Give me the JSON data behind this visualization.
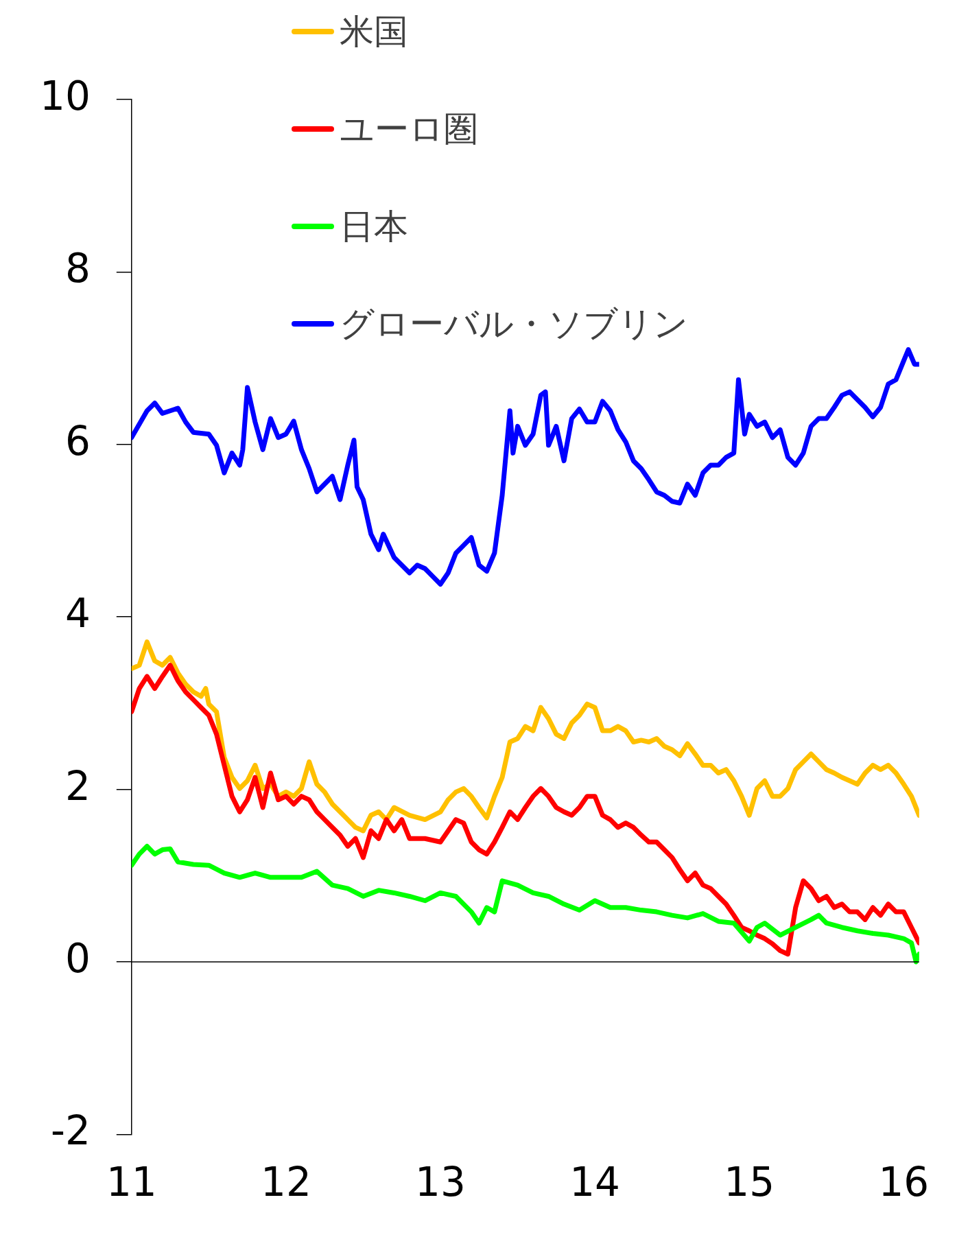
{
  "chart_data": {
    "type": "line",
    "xlim": [
      11,
      16.1
    ],
    "xticks": [
      11,
      12,
      13,
      14,
      15,
      16
    ],
    "ylim": [
      -2,
      10
    ],
    "yticks": [
      -2,
      0,
      2,
      4,
      6,
      8,
      10
    ],
    "grid": false,
    "legend": "top",
    "ref_lines": [
      {
        "axis": "y",
        "value": 0,
        "color": "#000000"
      }
    ],
    "marker": "none",
    "line_style": "solid",
    "series": [
      {
        "name": "米国",
        "color": "#ffc000",
        "x": [
          11,
          11.05,
          11.1,
          11.15,
          11.2,
          11.25,
          11.3,
          11.35,
          11.4,
          11.45,
          11.48,
          11.5,
          11.55,
          11.6,
          11.65,
          11.7,
          11.75,
          11.8,
          11.85,
          11.9,
          11.95,
          12,
          12.05,
          12.1,
          12.15,
          12.2,
          12.25,
          12.3,
          12.35,
          12.4,
          12.45,
          12.5,
          12.55,
          12.6,
          12.65,
          12.7,
          12.8,
          12.9,
          13,
          13.05,
          13.1,
          13.15,
          13.2,
          13.25,
          13.3,
          13.35,
          13.4,
          13.45,
          13.5,
          13.55,
          13.6,
          13.65,
          13.7,
          13.75,
          13.8,
          13.85,
          13.9,
          13.95,
          14,
          14.05,
          14.1,
          14.15,
          14.2,
          14.25,
          14.3,
          14.35,
          14.4,
          14.45,
          14.5,
          14.55,
          14.6,
          14.65,
          14.7,
          14.75,
          14.8,
          14.85,
          14.9,
          14.95,
          15,
          15.05,
          15.1,
          15.15,
          15.2,
          15.25,
          15.3,
          15.35,
          15.4,
          15.45,
          15.5,
          15.55,
          15.6,
          15.65,
          15.7,
          15.75,
          15.8,
          15.85,
          15.9,
          15.95,
          16,
          16.05,
          16.1
        ],
        "values": [
          3.4,
          3.44,
          3.71,
          3.49,
          3.44,
          3.53,
          3.35,
          3.22,
          3.13,
          3.08,
          3.17,
          2.99,
          2.9,
          2.37,
          2.14,
          2.01,
          2.1,
          2.28,
          2.01,
          2.06,
          1.92,
          1.97,
          1.92,
          2.01,
          2.32,
          2.06,
          1.97,
          1.83,
          1.74,
          1.65,
          1.56,
          1.52,
          1.7,
          1.74,
          1.65,
          1.79,
          1.7,
          1.65,
          1.74,
          1.88,
          1.97,
          2.01,
          1.92,
          1.79,
          1.67,
          1.92,
          2.14,
          2.55,
          2.59,
          2.73,
          2.68,
          2.95,
          2.82,
          2.64,
          2.59,
          2.77,
          2.86,
          2.99,
          2.95,
          2.68,
          2.68,
          2.73,
          2.68,
          2.55,
          2.57,
          2.55,
          2.59,
          2.5,
          2.46,
          2.39,
          2.53,
          2.41,
          2.28,
          2.28,
          2.19,
          2.23,
          2.1,
          1.92,
          1.7,
          2.01,
          2.1,
          1.92,
          1.92,
          2.01,
          2.23,
          2.32,
          2.41,
          2.32,
          2.23,
          2.19,
          2.14,
          2.1,
          2.06,
          2.19,
          2.28,
          2.23,
          2.28,
          2.19,
          2.06,
          1.92,
          1.7
        ]
      },
      {
        "name": "ユーロ圏",
        "color": "#ff0000",
        "x": [
          11,
          11.05,
          11.1,
          11.15,
          11.2,
          11.25,
          11.3,
          11.35,
          11.4,
          11.45,
          11.5,
          11.55,
          11.6,
          11.65,
          11.7,
          11.75,
          11.8,
          11.85,
          11.9,
          11.95,
          12,
          12.05,
          12.1,
          12.15,
          12.2,
          12.25,
          12.3,
          12.35,
          12.4,
          12.45,
          12.5,
          12.55,
          12.6,
          12.65,
          12.7,
          12.75,
          12.8,
          12.9,
          13,
          13.05,
          13.1,
          13.15,
          13.2,
          13.25,
          13.3,
          13.35,
          13.4,
          13.45,
          13.5,
          13.55,
          13.6,
          13.65,
          13.7,
          13.75,
          13.8,
          13.85,
          13.9,
          13.95,
          14,
          14.05,
          14.1,
          14.15,
          14.2,
          14.25,
          14.3,
          14.35,
          14.4,
          14.45,
          14.5,
          14.55,
          14.6,
          14.65,
          14.7,
          14.75,
          14.8,
          14.85,
          14.9,
          14.95,
          15,
          15.05,
          15.1,
          15.15,
          15.2,
          15.25,
          15.3,
          15.35,
          15.4,
          15.45,
          15.5,
          15.55,
          15.6,
          15.65,
          15.7,
          15.75,
          15.8,
          15.85,
          15.9,
          15.95,
          16,
          16.05,
          16.1
        ],
        "values": [
          2.9,
          3.17,
          3.31,
          3.17,
          3.31,
          3.44,
          3.26,
          3.13,
          3.04,
          2.95,
          2.86,
          2.64,
          2.28,
          1.92,
          1.74,
          1.88,
          2.14,
          1.79,
          2.19,
          1.88,
          1.92,
          1.83,
          1.92,
          1.88,
          1.74,
          1.65,
          1.56,
          1.47,
          1.34,
          1.43,
          1.21,
          1.52,
          1.43,
          1.65,
          1.52,
          1.65,
          1.43,
          1.43,
          1.39,
          1.52,
          1.65,
          1.61,
          1.39,
          1.3,
          1.25,
          1.39,
          1.56,
          1.74,
          1.65,
          1.79,
          1.92,
          2.01,
          1.92,
          1.79,
          1.74,
          1.7,
          1.79,
          1.92,
          1.92,
          1.7,
          1.65,
          1.56,
          1.61,
          1.56,
          1.47,
          1.39,
          1.39,
          1.3,
          1.21,
          1.07,
          0.94,
          1.03,
          0.89,
          0.85,
          0.76,
          0.67,
          0.54,
          0.4,
          0.36,
          0.31,
          0.27,
          0.21,
          0.13,
          0.09,
          0.63,
          0.94,
          0.85,
          0.71,
          0.76,
          0.63,
          0.67,
          0.58,
          0.58,
          0.49,
          0.63,
          0.54,
          0.67,
          0.58,
          0.58,
          0.4,
          0.22
        ]
      },
      {
        "name": "日本",
        "color": "#00ff00",
        "x": [
          11,
          11.05,
          11.1,
          11.15,
          11.2,
          11.25,
          11.3,
          11.4,
          11.5,
          11.6,
          11.7,
          11.8,
          11.9,
          12,
          12.1,
          12.2,
          12.3,
          12.4,
          12.5,
          12.6,
          12.7,
          12.8,
          12.9,
          13,
          13.1,
          13.2,
          13.25,
          13.3,
          13.35,
          13.4,
          13.5,
          13.6,
          13.7,
          13.8,
          13.9,
          14,
          14.1,
          14.2,
          14.3,
          14.4,
          14.5,
          14.6,
          14.7,
          14.8,
          14.9,
          15,
          15.05,
          15.1,
          15.2,
          15.3,
          15.4,
          15.45,
          15.5,
          15.6,
          15.7,
          15.8,
          15.9,
          16,
          16.05,
          16.08,
          16.1
        ],
        "values": [
          1.12,
          1.25,
          1.34,
          1.25,
          1.3,
          1.31,
          1.16,
          1.13,
          1.12,
          1.03,
          0.98,
          1.03,
          0.98,
          0.98,
          0.98,
          1.05,
          0.89,
          0.85,
          0.76,
          0.83,
          0.8,
          0.76,
          0.71,
          0.8,
          0.76,
          0.58,
          0.45,
          0.63,
          0.58,
          0.94,
          0.89,
          0.8,
          0.76,
          0.67,
          0.6,
          0.71,
          0.63,
          0.63,
          0.6,
          0.58,
          0.54,
          0.51,
          0.56,
          0.47,
          0.45,
          0.24,
          0.4,
          0.45,
          0.31,
          0.4,
          0.49,
          0.54,
          0.45,
          0.4,
          0.36,
          0.33,
          0.31,
          0.27,
          0.22,
          0,
          0.09
        ]
      },
      {
        "name": "グローバル・ソブリン",
        "color": "#0000ff",
        "x": [
          11,
          11.1,
          11.15,
          11.2,
          11.3,
          11.35,
          11.4,
          11.5,
          11.55,
          11.6,
          11.65,
          11.7,
          11.72,
          11.75,
          11.8,
          11.85,
          11.9,
          11.95,
          12,
          12.05,
          12.1,
          12.15,
          12.2,
          12.3,
          12.35,
          12.4,
          12.44,
          12.46,
          12.5,
          12.55,
          12.6,
          12.63,
          12.7,
          12.8,
          12.85,
          12.9,
          12.95,
          13,
          13.05,
          13.1,
          13.15,
          13.2,
          13.25,
          13.3,
          13.35,
          13.4,
          13.45,
          13.47,
          13.5,
          13.55,
          13.6,
          13.65,
          13.68,
          13.7,
          13.75,
          13.8,
          13.85,
          13.9,
          13.95,
          14,
          14.05,
          14.1,
          14.15,
          14.2,
          14.25,
          14.3,
          14.35,
          14.4,
          14.45,
          14.5,
          14.55,
          14.6,
          14.65,
          14.7,
          14.75,
          14.8,
          14.85,
          14.9,
          14.93,
          14.97,
          15,
          15.05,
          15.1,
          15.15,
          15.2,
          15.25,
          15.3,
          15.35,
          15.4,
          15.45,
          15.5,
          15.55,
          15.6,
          15.65,
          15.7,
          15.75,
          15.8,
          15.85,
          15.9,
          15.95,
          16,
          16.03,
          16.07,
          16.1
        ],
        "values": [
          6.08,
          6.39,
          6.48,
          6.36,
          6.42,
          6.26,
          6.14,
          6.12,
          5.99,
          5.67,
          5.9,
          5.76,
          5.94,
          6.66,
          6.26,
          5.94,
          6.3,
          6.08,
          6.12,
          6.27,
          5.94,
          5.72,
          5.45,
          5.63,
          5.36,
          5.76,
          6.05,
          5.51,
          5.36,
          4.96,
          4.78,
          4.96,
          4.69,
          4.51,
          4.6,
          4.56,
          4.47,
          4.38,
          4.51,
          4.74,
          4.83,
          4.92,
          4.6,
          4.53,
          4.74,
          5.41,
          6.39,
          5.9,
          6.21,
          5.99,
          6.12,
          6.57,
          6.61,
          5.99,
          6.21,
          5.81,
          6.3,
          6.41,
          6.26,
          6.26,
          6.5,
          6.39,
          6.17,
          6.03,
          5.81,
          5.72,
          5.59,
          5.45,
          5.41,
          5.34,
          5.32,
          5.54,
          5.41,
          5.67,
          5.76,
          5.76,
          5.85,
          5.9,
          6.75,
          6.12,
          6.35,
          6.21,
          6.26,
          6.08,
          6.17,
          5.85,
          5.76,
          5.9,
          6.21,
          6.3,
          6.3,
          6.43,
          6.57,
          6.61,
          6.52,
          6.43,
          6.32,
          6.43,
          6.7,
          6.75,
          6.97,
          7.1,
          6.93,
          6.93
        ]
      }
    ]
  }
}
